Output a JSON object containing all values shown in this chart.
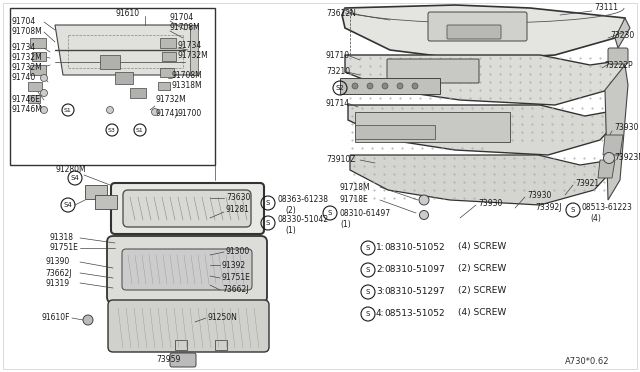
{
  "bg_color": "#f0f0eb",
  "line_color": "#2a2a2a",
  "diagram_number": "A730*0.62",
  "screw_legend": [
    {
      "num": "1",
      "part": "08310-51052",
      "qty": "(4)",
      "type": "SCREW"
    },
    {
      "num": "2",
      "part": "08310-51097",
      "qty": "(2)",
      "type": "SCREW"
    },
    {
      "num": "3",
      "part": "08310-51297",
      "qty": "(2)",
      "type": "SCREW"
    },
    {
      "num": "4",
      "part": "08513-51052",
      "qty": "(4)",
      "type": "SCREW"
    }
  ]
}
